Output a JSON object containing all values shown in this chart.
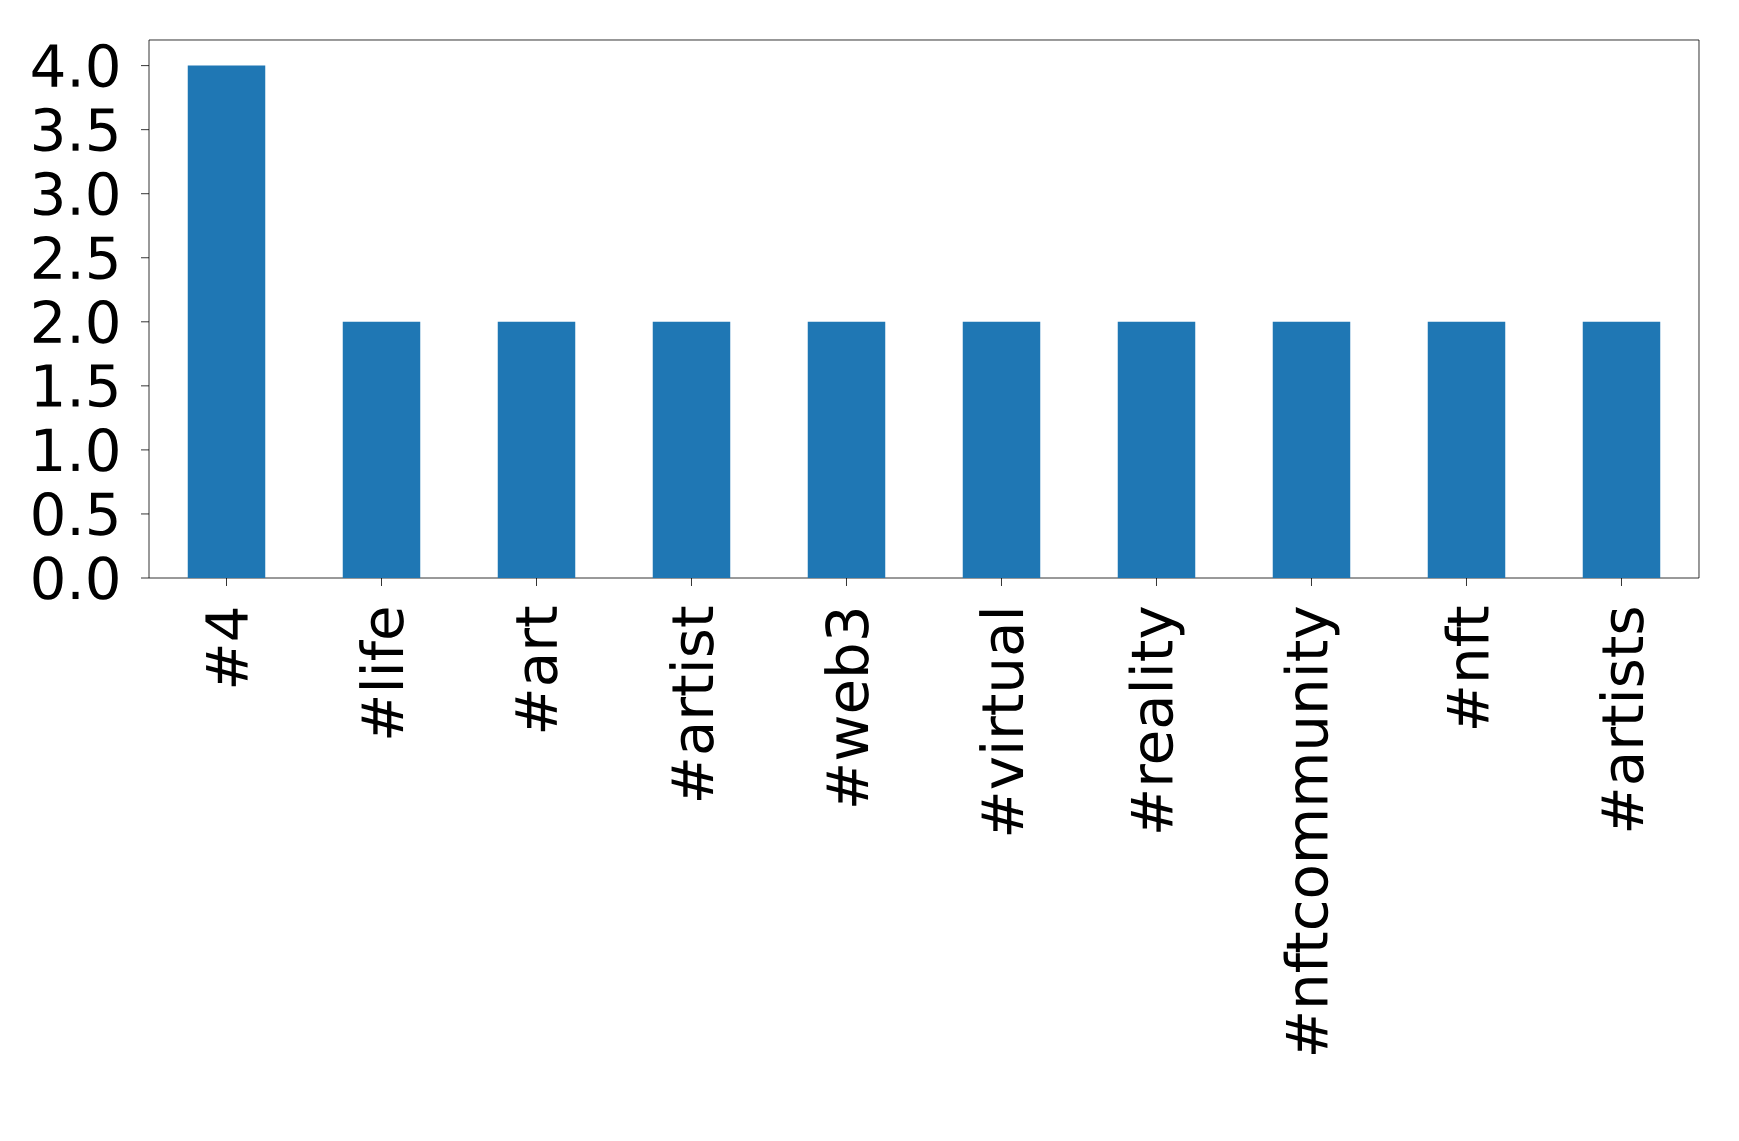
{
  "chart_data": {
    "type": "bar",
    "categories": [
      "#4",
      "#life",
      "#art",
      "#artist",
      "#web3",
      "#virtual",
      "#reality",
      "#nftcommunity",
      "#nft",
      "#artists"
    ],
    "values": [
      4,
      2,
      2,
      2,
      2,
      2,
      2,
      2,
      2,
      2
    ],
    "color": "#1f77b4",
    "ylim": [
      0,
      4.2
    ],
    "yticks": [
      {
        "value": 0,
        "label": "0.0"
      },
      {
        "value": 0.5,
        "label": "0.5"
      },
      {
        "value": 1,
        "label": "1.0"
      },
      {
        "value": 1.5,
        "label": "1.5"
      },
      {
        "value": 2,
        "label": "2.0"
      },
      {
        "value": 2.5,
        "label": "2.5"
      },
      {
        "value": 3,
        "label": "3.0"
      },
      {
        "value": 3.5,
        "label": "3.5"
      },
      {
        "value": 4,
        "label": "4.0"
      }
    ]
  }
}
